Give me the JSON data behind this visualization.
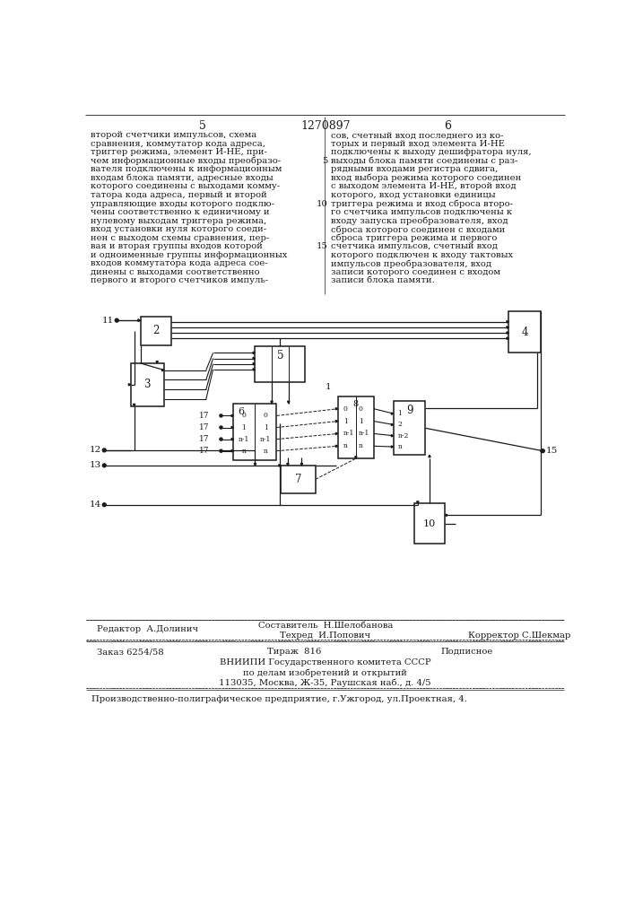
{
  "page_number_top": "1270897",
  "col_left_num": "5",
  "col_right_num": "6",
  "col_left_text": [
    "второй счетчики импульсов, схема",
    "сравнения, коммутатор кода адреса,",
    "триггер режима, элемент И-НЕ, при-",
    "чем информационные входы преобразо-",
    "вателя подключены к информационным",
    "входам блока памяти, адресные входы",
    "которого соединены с выходами комму-",
    "татора кода адреса, первый и второй",
    "управляющие входы которого подклю-",
    "чены соответственно к единичному и",
    "нулевому выходам триггера режима,",
    "вход установки нуля которого соеди-",
    "нен с выходом схемы сравнения, пер-",
    "вая и вторая группы входов которой",
    "и одноименные группы информационных",
    "входов коммутатора кода адреса сое-",
    "динены с выходами соответственно",
    "первого и второго счетчиков импуль-"
  ],
  "col_right_text": [
    "сов, счетный вход последнего из ко-",
    "торых и первый вход элемента И-НЕ",
    "подключены к выходу дешифратора нуля,",
    "выходы блока памяти соединены с раз-",
    "рядными входами регистра сдвига,",
    "вход выбора режима которого соединен",
    "с выходом элемента И-НЕ, второй вход",
    "которого, вход установки единицы",
    "триггера режима и вход сброса второ-",
    "го счетчика импульсов подключены к",
    "входу запуска преобразователя, вход",
    "сброса которого соединен с входами",
    "сброса триггера режима и первого",
    "счетчика импульсов, счетный вход",
    "которого подключен к входу тактовых",
    "импульсов преобразователя, вход",
    "записи которого соединен с входом",
    "записи блока памяти."
  ],
  "right_line_num_map": {
    "3": "5",
    "8": "10",
    "13": "15"
  },
  "footer_editor": "Редактор  А.Долинич",
  "footer_composer": "Составитель  Н.Шелобанова",
  "footer_techred": "Техред  И.Попович",
  "footer_corrector": "Корректор С.Шекмар",
  "footer_order": "Заказ 6254/58",
  "footer_tirazh": "Тираж  816",
  "footer_podpisnoe": "Подписное",
  "footer_vniiipi_line1": "ВНИИПИ Государственного комитета СССР",
  "footer_vniiipi_line2": "по делам изобретений и открытий",
  "footer_vniiipi_line3": "113035, Москва, Ж-35, Раушская наб., д. 4/5",
  "footer_production": "Производственно-полиграфическое предприятие, г.Ужгород, ул.Проектная, 4.",
  "bg_color": "#ffffff",
  "text_color": "#1a1a1a",
  "diagram_color": "#1a1a1a"
}
